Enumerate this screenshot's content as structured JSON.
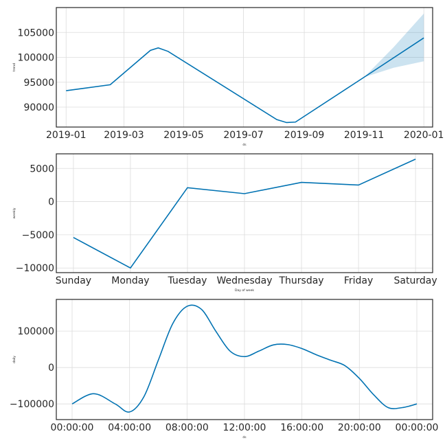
{
  "chart_data": [
    {
      "type": "line",
      "panel": "trend",
      "ylabel": "trend",
      "xlabel": "ds",
      "x_ticks": [
        "2019-01",
        "2019-03",
        "2019-05",
        "2019-07",
        "2019-09",
        "2019-11",
        "2020-01"
      ],
      "x_tick_values": [
        "2019-01-01",
        "2019-03-01",
        "2019-05-01",
        "2019-07-01",
        "2019-09-01",
        "2019-11-01",
        "2020-01-01"
      ],
      "xlim": [
        "2018-12-22",
        "2020-01-10"
      ],
      "y_ticks": [
        90000,
        95000,
        100000,
        105000
      ],
      "ylim": [
        86000,
        110000
      ],
      "x": [
        "2019-01-01",
        "2019-02-15",
        "2019-03-28",
        "2019-04-05",
        "2019-04-15",
        "2019-08-04",
        "2019-08-14",
        "2019-08-23",
        "2019-11-01",
        "2020-01-01"
      ],
      "y": [
        93300,
        94500,
        101400,
        101900,
        101200,
        87500,
        86900,
        87000,
        96000,
        103900
      ],
      "band_x": [
        "2019-11-01",
        "2019-12-01",
        "2020-01-01"
      ],
      "band_upper": [
        96000,
        102000,
        108800
      ],
      "band_lower": [
        96000,
        97900,
        99200
      ],
      "grid": true
    },
    {
      "type": "line",
      "panel": "weekly",
      "ylabel": "weekly",
      "xlabel": "Day of week",
      "categories": [
        "Sunday",
        "Monday",
        "Tuesday",
        "Wednesday",
        "Thursday",
        "Friday",
        "Saturday"
      ],
      "values": [
        -5400,
        -10000,
        2100,
        1200,
        2900,
        2500,
        6400
      ],
      "y_ticks": [
        -10000,
        -5000,
        0,
        5000
      ],
      "ylim": [
        -10700,
        7200
      ],
      "grid": true
    },
    {
      "type": "line",
      "panel": "daily",
      "ylabel": "daily",
      "xlabel": "ds",
      "x_ticks": [
        "00:00:00",
        "04:00:00",
        "08:00:00",
        "12:00:00",
        "16:00:00",
        "20:00:00",
        "00:00:00"
      ],
      "x_tick_hours": [
        0,
        4,
        8,
        12,
        16,
        20,
        24
      ],
      "xlim_hours": [
        -1.1,
        25.1
      ],
      "y_ticks": [
        -100000,
        0,
        100000
      ],
      "ylim": [
        -143000,
        187000
      ],
      "x_hours": [
        0,
        1.5,
        3,
        4,
        5,
        6,
        7,
        8,
        9,
        10,
        11,
        12,
        13,
        14,
        15,
        16,
        17,
        18,
        19,
        20,
        21,
        22,
        23,
        24
      ],
      "y": [
        -100000,
        -72000,
        -100000,
        -122000,
        -80000,
        20000,
        120000,
        168000,
        160000,
        100000,
        45000,
        30000,
        45000,
        62000,
        63000,
        52000,
        35000,
        20000,
        5000,
        -30000,
        -75000,
        -110000,
        -110000,
        -100000
      ],
      "grid": true
    }
  ]
}
